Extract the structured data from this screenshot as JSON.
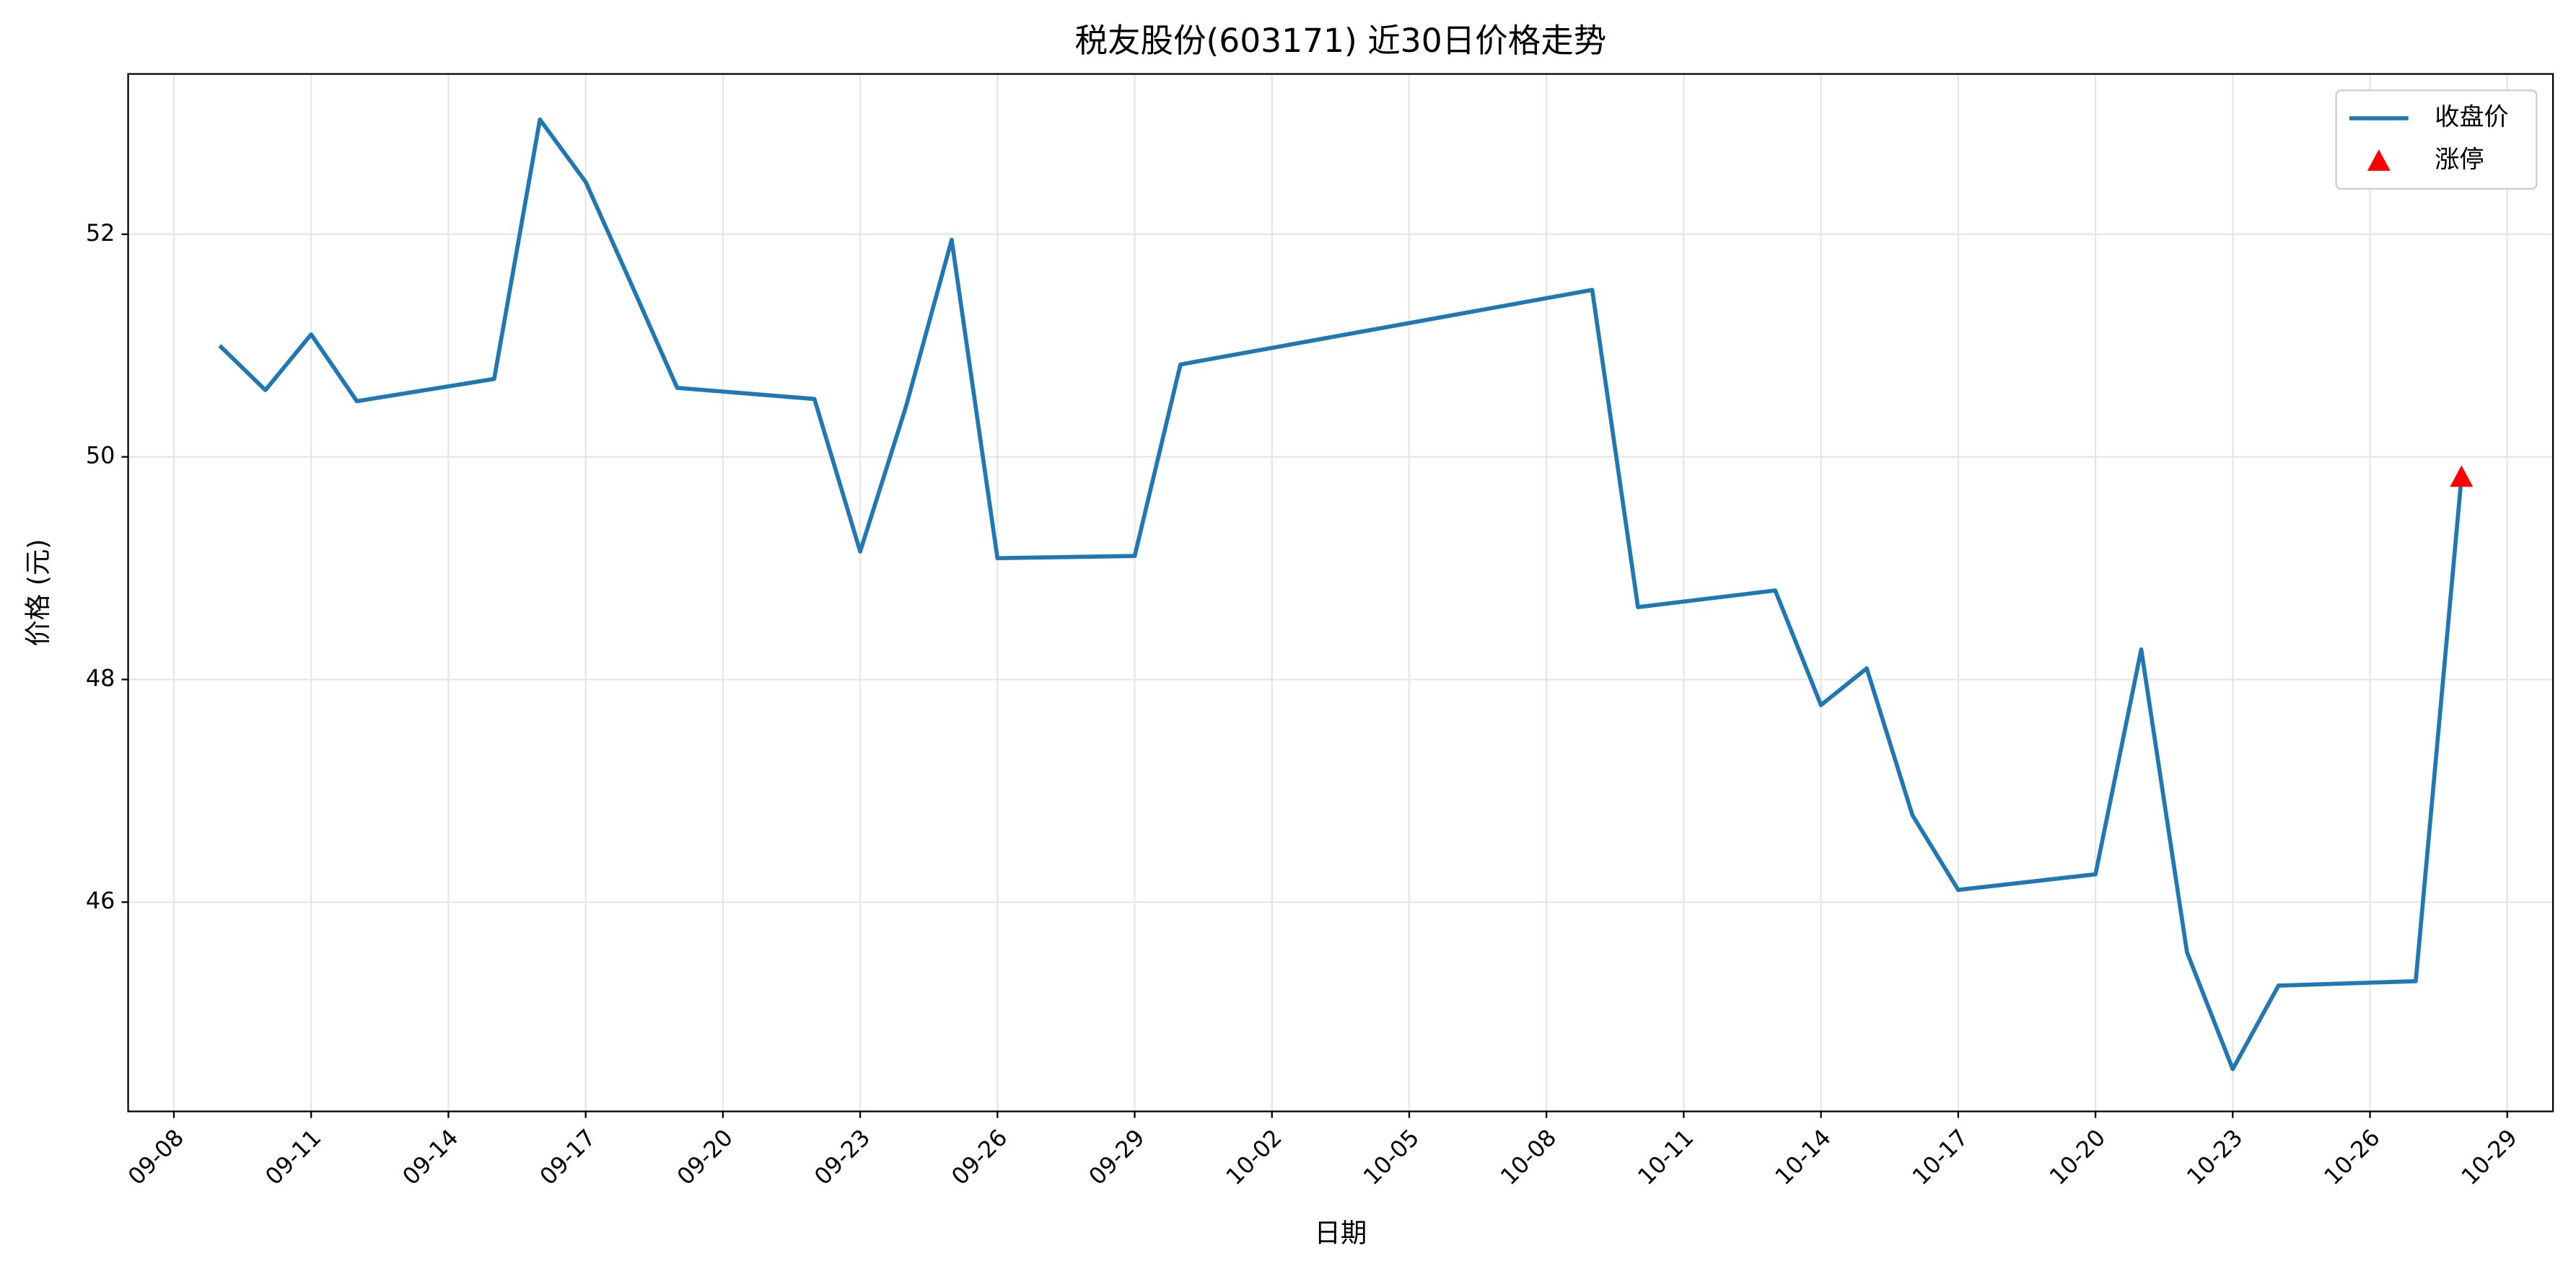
{
  "chart_data": {
    "type": "line",
    "title": "税友股份(603171) 近30日价格走势",
    "x_label": "日期",
    "y_label": "价格 (元)",
    "x": [
      "09-09",
      "09-10",
      "09-11",
      "09-12",
      "09-15",
      "09-16",
      "09-17",
      "09-18",
      "09-19",
      "09-22",
      "09-23",
      "09-24",
      "09-25",
      "09-26",
      "09-29",
      "09-30",
      "10-09",
      "10-10",
      "10-13",
      "10-14",
      "10-15",
      "10-16",
      "10-17",
      "10-20",
      "10-21",
      "10-22",
      "10-23",
      "10-24",
      "10-27",
      "10-28"
    ],
    "series": [
      {
        "name": "收盘价",
        "color": "#1f77b4",
        "values": [
          51.0,
          50.6,
          51.1,
          50.5,
          50.7,
          53.03,
          52.47,
          51.55,
          50.62,
          50.52,
          49.15,
          50.45,
          51.95,
          49.09,
          49.11,
          50.83,
          51.5,
          48.65,
          48.8,
          47.77,
          48.1,
          46.78,
          46.11,
          46.25,
          48.27,
          45.55,
          44.5,
          45.25,
          45.29,
          49.82
        ]
      },
      {
        "name": "涨停",
        "type": "scatter",
        "marker": "triangle",
        "color": "#ff0000",
        "x": [
          "10-28"
        ],
        "values": [
          49.82
        ]
      }
    ],
    "xlim": [
      "09-07",
      "10-30"
    ],
    "xticks": [
      "09-08",
      "09-11",
      "09-14",
      "09-17",
      "09-20",
      "09-23",
      "09-26",
      "09-29",
      "10-02",
      "10-05",
      "10-08",
      "10-11",
      "10-14",
      "10-17",
      "10-20",
      "10-23",
      "10-26",
      "10-29"
    ],
    "ylim": [
      44.12,
      53.44
    ],
    "yticks": [
      46,
      48,
      50,
      52
    ],
    "grid": true,
    "legend": "upper right"
  }
}
